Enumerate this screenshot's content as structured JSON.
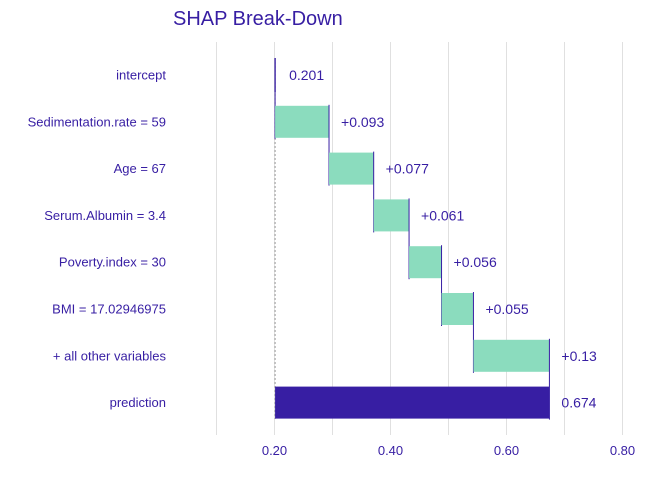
{
  "chart_data": {
    "type": "bar",
    "title": "SHAP Break-Down",
    "xlabel": "",
    "ylabel": "",
    "xlim": [
      0.1,
      0.8
    ],
    "xticks": [
      0.2,
      0.4,
      0.6,
      0.8
    ],
    "xtick_labels": [
      "0.20",
      "0.40",
      "0.60",
      "0.80"
    ],
    "grid": "vertical",
    "baseline": 0.201,
    "categories": [
      "intercept",
      "Sedimentation.rate = 59",
      "Age = 67",
      "Serum.Albumin = 3.4",
      "Poverty.index = 30",
      "BMI = 17.02946975",
      "+ all other variables",
      "prediction"
    ],
    "bars": [
      {
        "kind": "intercept",
        "start": 0.201,
        "end": 0.201,
        "label": "0.201"
      },
      {
        "kind": "contribution",
        "start": 0.201,
        "end": 0.294,
        "label": "+0.093"
      },
      {
        "kind": "contribution",
        "start": 0.294,
        "end": 0.371,
        "label": "+0.077"
      },
      {
        "kind": "contribution",
        "start": 0.371,
        "end": 0.432,
        "label": "+0.061"
      },
      {
        "kind": "contribution",
        "start": 0.432,
        "end": 0.488,
        "label": "+0.056"
      },
      {
        "kind": "contribution",
        "start": 0.488,
        "end": 0.543,
        "label": "+0.055"
      },
      {
        "kind": "contribution",
        "start": 0.543,
        "end": 0.674,
        "label": "+0.13"
      },
      {
        "kind": "prediction",
        "start": 0.201,
        "end": 0.674,
        "label": "0.674"
      }
    ],
    "colors": {
      "positive": "#8bdcbe",
      "prediction": "#371ea3",
      "text": "#371ea3",
      "grid": "#e0e0e0",
      "connector": "#371ea3",
      "baseline": "#999999"
    }
  }
}
